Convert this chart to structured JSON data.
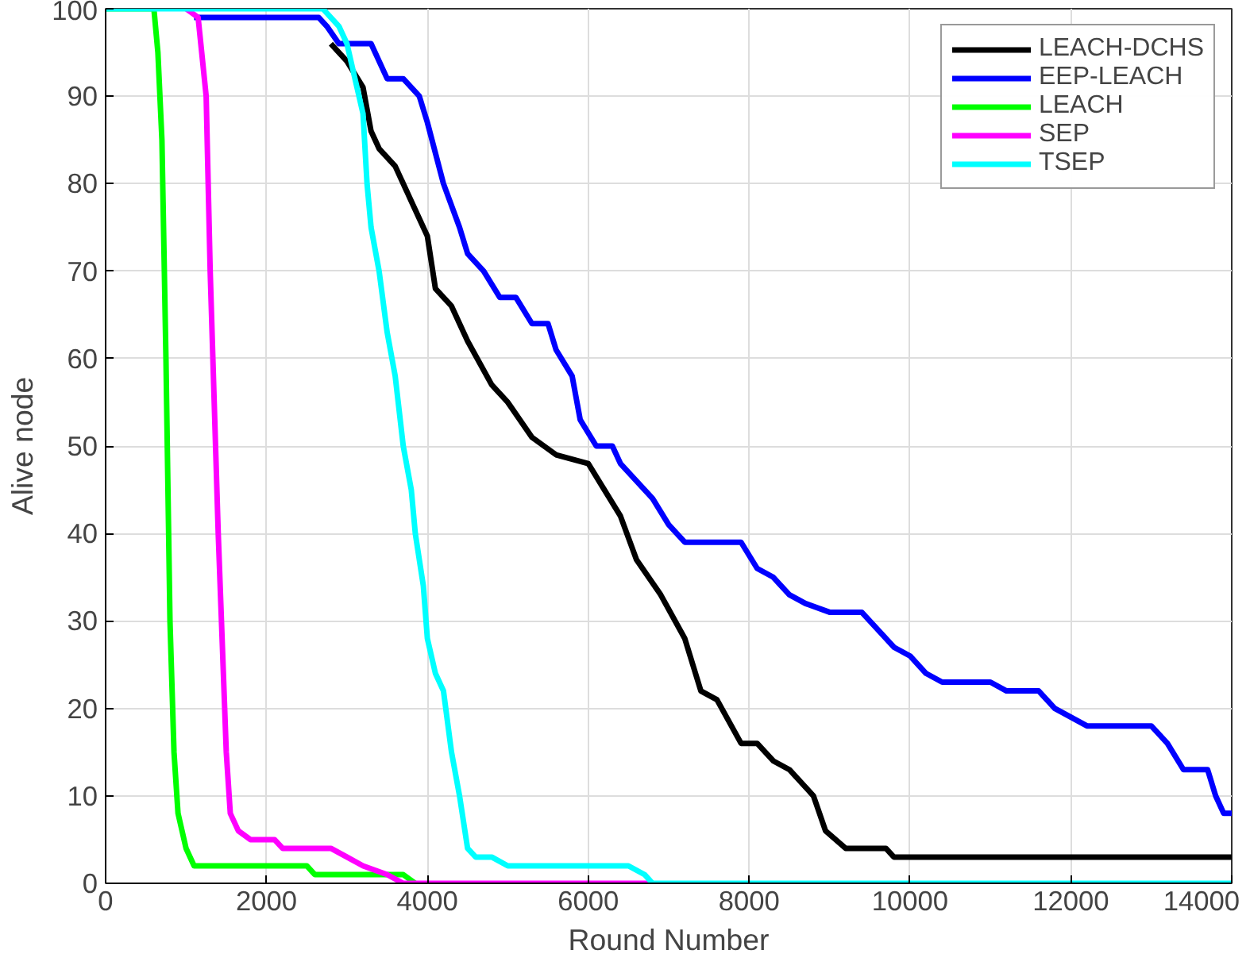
{
  "chart_data": {
    "type": "line",
    "xlabel": "Round Number",
    "ylabel": "Alive node",
    "xlim": [
      0,
      14000
    ],
    "ylim": [
      0,
      100
    ],
    "xticks": [
      0,
      2000,
      4000,
      6000,
      8000,
      10000,
      12000,
      14000
    ],
    "yticks": [
      0,
      10,
      20,
      30,
      40,
      50,
      60,
      70,
      80,
      90,
      100
    ],
    "grid": true,
    "legend": "top right",
    "marker": "none",
    "line_style": "solid",
    "series": [
      {
        "name": "LEACH-DCHS",
        "color": "#000000",
        "x": [
          2800,
          3000,
          3200,
          3300,
          3400,
          3600,
          3800,
          4000,
          4100,
          4300,
          4500,
          4800,
          5000,
          5300,
          5600,
          6000,
          6200,
          6400,
          6600,
          6900,
          7200,
          7400,
          7600,
          7900,
          8100,
          8300,
          8500,
          8800,
          8950,
          9200,
          9700,
          9800,
          14000
        ],
        "values": [
          96,
          94,
          91,
          86,
          84,
          82,
          78,
          74,
          68,
          66,
          62,
          57,
          55,
          51,
          49,
          48,
          45,
          42,
          37,
          33,
          28,
          22,
          21,
          16,
          16,
          14,
          13,
          10,
          6,
          4,
          4,
          3,
          3
        ]
      },
      {
        "name": "EEP-LEACH",
        "color": "#0000ff",
        "x": [
          1100,
          2650,
          2750,
          2900,
          3300,
          3500,
          3700,
          3900,
          4000,
          4200,
          4400,
          4500,
          4700,
          4900,
          5100,
          5300,
          5500,
          5600,
          5800,
          5900,
          6100,
          6300,
          6400,
          6600,
          6800,
          7000,
          7200,
          7900,
          8100,
          8300,
          8500,
          8700,
          9000,
          9400,
          9600,
          9800,
          10000,
          10200,
          10400,
          11000,
          11200,
          11600,
          11800,
          12000,
          12200,
          13000,
          13200,
          13400,
          13700,
          13800,
          13900,
          14000
        ],
        "values": [
          99,
          99,
          98,
          96,
          96,
          92,
          92,
          90,
          87,
          80,
          75,
          72,
          70,
          67,
          67,
          64,
          64,
          61,
          58,
          53,
          50,
          50,
          48,
          46,
          44,
          41,
          39,
          39,
          36,
          35,
          33,
          32,
          31,
          31,
          29,
          27,
          26,
          24,
          23,
          23,
          22,
          22,
          20,
          19,
          18,
          18,
          16,
          13,
          13,
          10,
          8,
          8
        ]
      },
      {
        "name": "LEACH",
        "color": "#00ff00",
        "x": [
          0,
          600,
          650,
          700,
          750,
          800,
          850,
          900,
          1000,
          1100,
          2500,
          2600,
          3700,
          3850
        ],
        "values": [
          100,
          100,
          95,
          85,
          60,
          30,
          15,
          8,
          4,
          2,
          2,
          1,
          1,
          0
        ]
      },
      {
        "name": "SEP",
        "color": "#ff00ff",
        "x": [
          1000,
          1150,
          1250,
          1300,
          1400,
          1500,
          1550,
          1650,
          1800,
          2100,
          2200,
          2800,
          3000,
          3200,
          3500,
          3700,
          6800
        ],
        "values": [
          100,
          99,
          90,
          70,
          40,
          15,
          8,
          6,
          5,
          5,
          4,
          4,
          3,
          2,
          1,
          0,
          0
        ]
      },
      {
        "name": "TSEP",
        "color": "#00ffff",
        "x": [
          0,
          2700,
          2900,
          3000,
          3100,
          3200,
          3250,
          3300,
          3400,
          3500,
          3600,
          3700,
          3800,
          3850,
          3950,
          4000,
          4100,
          4200,
          4300,
          4400,
          4500,
          4600,
          4800,
          5000,
          6500,
          6700,
          6800,
          14000
        ],
        "values": [
          100,
          100,
          98,
          96,
          92,
          88,
          80,
          75,
          70,
          63,
          58,
          50,
          45,
          40,
          34,
          28,
          24,
          22,
          15,
          10,
          4,
          3,
          3,
          2,
          2,
          1,
          0,
          0
        ]
      }
    ]
  }
}
